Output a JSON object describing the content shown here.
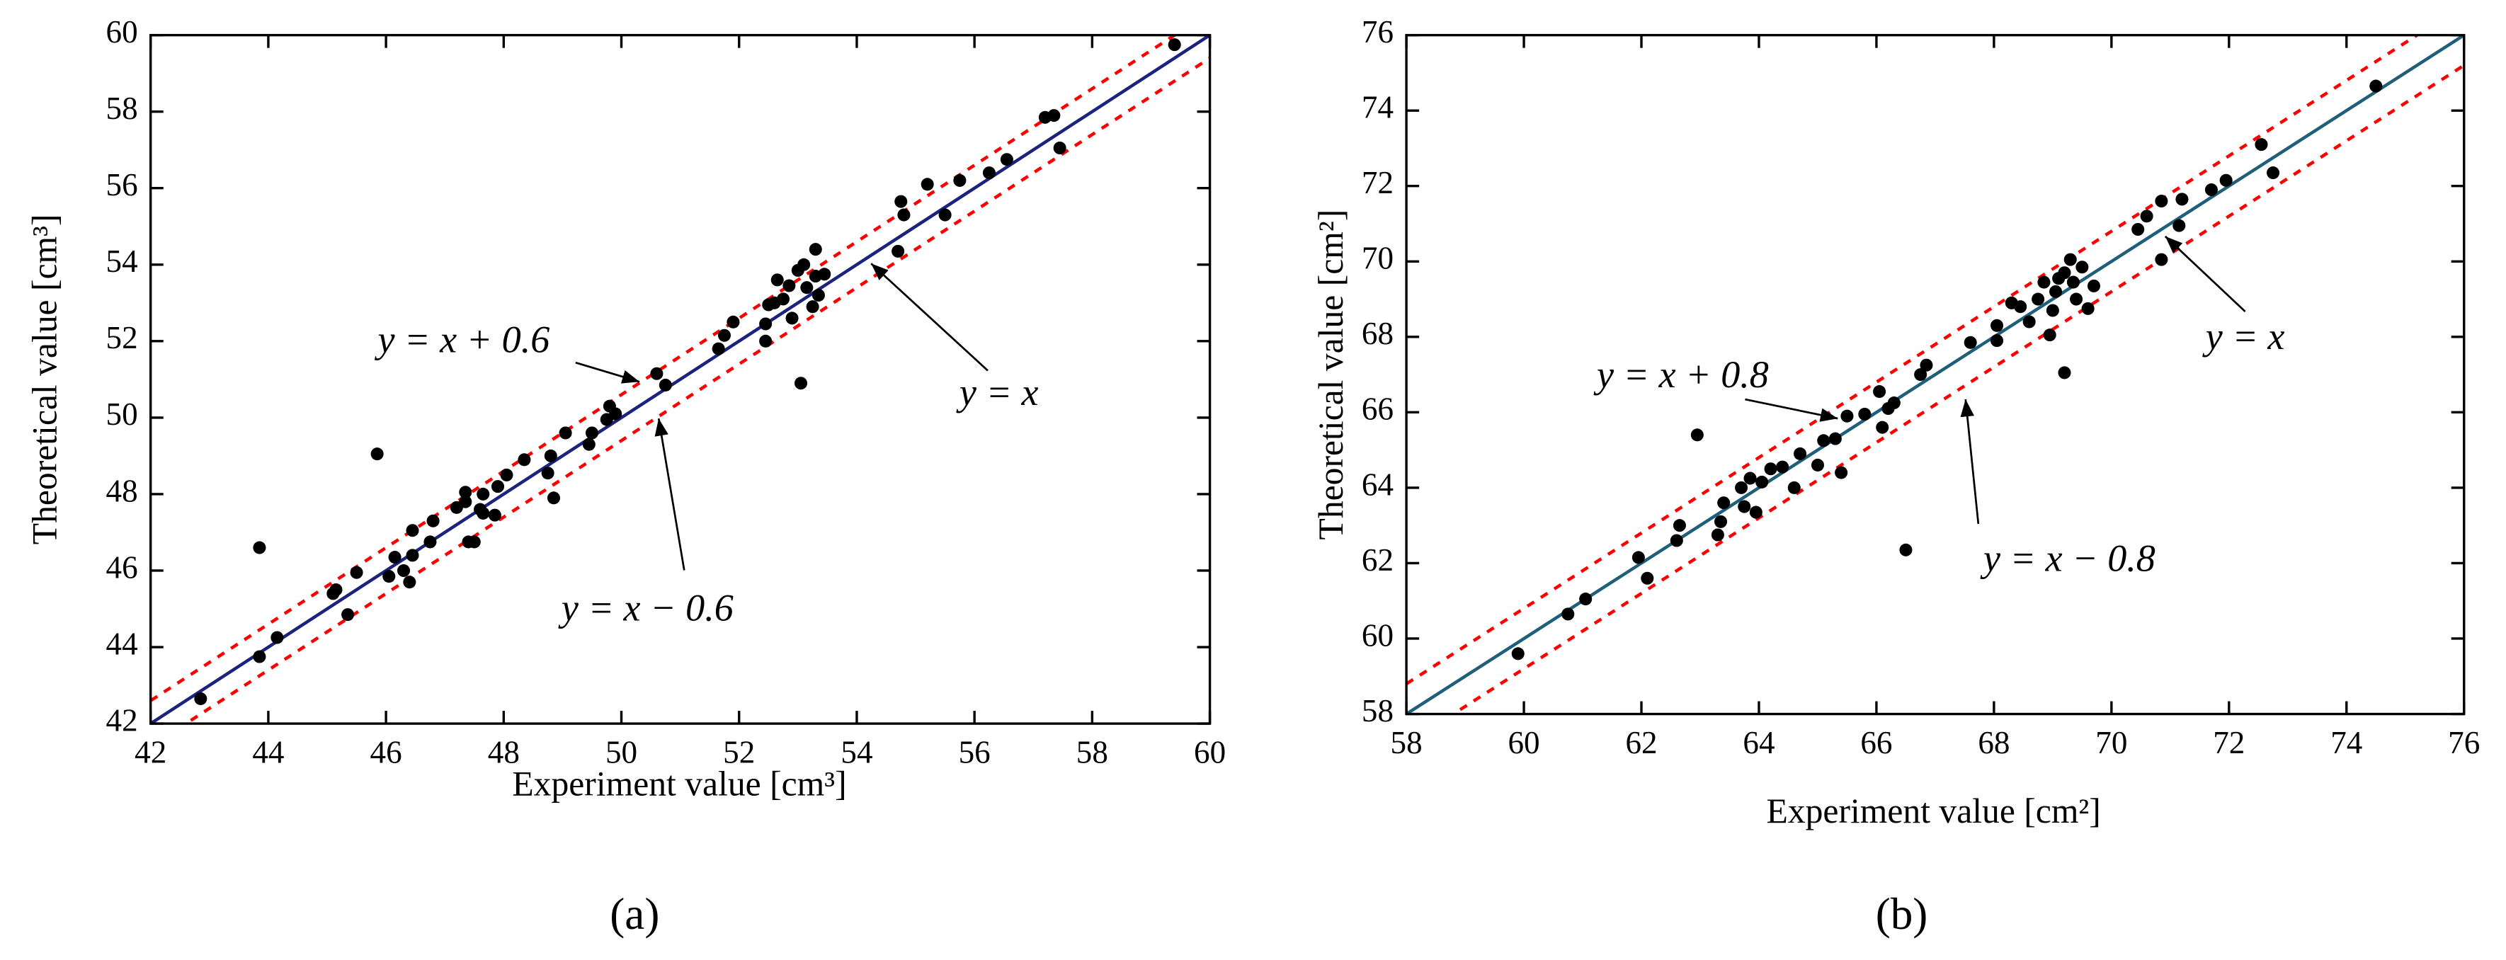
{
  "chart_data": [
    {
      "type": "scatter",
      "panel_label": "(a)",
      "x_label": "Experiment value [cm³]",
      "y_label": "Theoretical value [cm³]",
      "xlim": [
        42,
        60
      ],
      "ylim": [
        42,
        60
      ],
      "xticks": [
        42,
        44,
        46,
        48,
        50,
        52,
        54,
        56,
        58,
        60
      ],
      "yticks": [
        42,
        44,
        46,
        48,
        50,
        52,
        54,
        56,
        58,
        60
      ],
      "point_color": "#000000",
      "line_offsets": [
        0,
        0.6,
        -0.6
      ],
      "line_colors": [
        "#1a237e",
        "#ff0000",
        "#ff0000"
      ],
      "annotations": [
        "y = x + 0.6",
        "y = x",
        "y = x − 0.6"
      ],
      "x": [
        42.85,
        43.85,
        43.85,
        44.15,
        45.1,
        45.15,
        45.35,
        45.5,
        45.85,
        46.05,
        46.15,
        46.3,
        46.4,
        46.45,
        46.45,
        46.75,
        46.8,
        47.2,
        47.35,
        47.35,
        47.4,
        47.5,
        47.6,
        47.65,
        47.65,
        47.85,
        47.9,
        48.05,
        48.35,
        48.75,
        48.8,
        48.85,
        49.05,
        49.45,
        49.5,
        49.75,
        49.8,
        49.9,
        50.6,
        50.75,
        51.65,
        51.75,
        51.9,
        52.45,
        52.45,
        52.5,
        52.6,
        52.65,
        52.75,
        52.85,
        52.9,
        53.0,
        53.05,
        53.1,
        53.15,
        53.25,
        53.3,
        53.3,
        53.35,
        53.45,
        54.7,
        54.75,
        54.8,
        55.2,
        55.5,
        55.75,
        56.25,
        56.55,
        57.2,
        57.35,
        57.45,
        59.4
      ],
      "values": [
        42.65,
        43.75,
        46.6,
        44.25,
        45.4,
        45.5,
        44.85,
        45.95,
        49.05,
        45.85,
        46.35,
        46.0,
        45.7,
        46.4,
        47.05,
        46.75,
        47.3,
        47.65,
        47.8,
        48.05,
        46.75,
        46.75,
        47.6,
        47.5,
        48.0,
        47.45,
        48.2,
        48.5,
        48.9,
        48.55,
        49.0,
        47.9,
        49.6,
        49.3,
        49.6,
        49.95,
        50.3,
        50.1,
        51.15,
        50.85,
        51.8,
        52.15,
        52.5,
        52.0,
        52.45,
        52.95,
        53.0,
        53.6,
        53.1,
        53.45,
        52.6,
        53.85,
        50.9,
        54.0,
        53.4,
        52.9,
        54.4,
        53.7,
        53.2,
        53.75,
        54.35,
        55.65,
        55.3,
        56.1,
        55.3,
        56.2,
        56.4,
        56.75,
        57.85,
        57.9,
        57.05,
        59.75
      ]
    },
    {
      "type": "scatter",
      "panel_label": "(b)",
      "x_label": "Experiment value [cm²]",
      "y_label": "Theoretical value [cm²]",
      "xlim": [
        58,
        76
      ],
      "ylim": [
        58,
        76
      ],
      "xticks": [
        58,
        60,
        62,
        64,
        66,
        68,
        70,
        72,
        74,
        76
      ],
      "yticks": [
        58,
        60,
        62,
        64,
        66,
        68,
        70,
        72,
        74,
        76
      ],
      "point_color": "#000000",
      "line_offsets": [
        0,
        0.8,
        -0.8
      ],
      "line_colors": [
        "#1f5f7a",
        "#ff0000",
        "#ff0000"
      ],
      "annotations": [
        "y = x + 0.8",
        "y = x",
        "y = x − 0.8"
      ],
      "x": [
        59.9,
        60.75,
        61.05,
        61.95,
        62.1,
        62.6,
        62.65,
        62.95,
        63.3,
        63.35,
        63.4,
        63.7,
        63.75,
        63.85,
        63.95,
        64.05,
        64.2,
        64.4,
        64.6,
        64.7,
        65.0,
        65.1,
        65.3,
        65.4,
        65.5,
        65.8,
        66.05,
        66.1,
        66.2,
        66.3,
        66.5,
        66.75,
        66.85,
        67.6,
        68.05,
        68.05,
        68.3,
        68.45,
        68.6,
        68.75,
        68.85,
        68.95,
        69.0,
        69.05,
        69.1,
        69.2,
        69.2,
        69.3,
        69.35,
        69.4,
        69.5,
        69.6,
        69.7,
        70.45,
        70.6,
        70.85,
        70.85,
        71.15,
        71.2,
        71.7,
        71.95,
        72.55,
        72.75,
        74.5
      ],
      "values": [
        59.6,
        60.65,
        61.05,
        62.15,
        61.6,
        62.6,
        63.0,
        65.4,
        62.75,
        63.1,
        63.6,
        64.0,
        63.5,
        64.25,
        63.35,
        64.15,
        64.5,
        64.55,
        64.0,
        64.9,
        64.6,
        65.25,
        65.3,
        64.4,
        65.9,
        65.95,
        66.55,
        65.6,
        66.1,
        66.25,
        62.35,
        67.0,
        67.25,
        67.85,
        68.3,
        67.9,
        68.9,
        68.8,
        68.4,
        69.0,
        69.45,
        68.05,
        68.7,
        69.2,
        69.55,
        67.05,
        69.7,
        70.05,
        69.45,
        69.0,
        69.85,
        68.75,
        69.35,
        70.85,
        71.2,
        71.6,
        70.05,
        70.95,
        71.65,
        71.9,
        72.15,
        73.1,
        72.35,
        74.65
      ]
    }
  ]
}
